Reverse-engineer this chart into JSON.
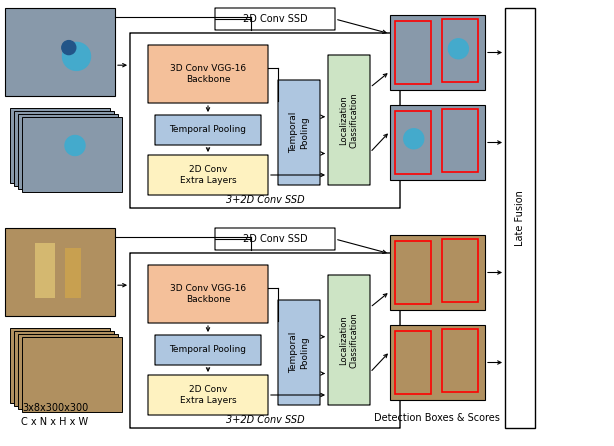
{
  "fig_width": 6.14,
  "fig_height": 4.46,
  "dpi": 100,
  "bg_color": "#ffffff",
  "colors": {
    "vgg_fill": "#f4c09a",
    "tp_fill": "#aec6e0",
    "extra_fill": "#fef2c0",
    "lc_fill": "#cde4c5",
    "outer_box_fill": "#ffffff",
    "red_box": "#ff0000",
    "img_top_bg": "#8899aa",
    "img_bot_bg": "#b09060"
  },
  "stream1": {
    "vgg_label": "3D Conv VGG-16\nBackbone",
    "tp_label": "Temporal Pooling",
    "extra_label": "2D Conv\nExtra Layers",
    "tp2_label": "Temporal\nPooling",
    "lc_label": "Localization\nClassification",
    "ssd2d_label": "2D Conv SSD",
    "ssd3p2d_label": "3+2D Conv SSD"
  },
  "stream2": {
    "vgg_label": "3D Conv VGG-16\nBackbone",
    "tp_label": "Temporal Pooling",
    "extra_label": "2D Conv\nExtra Layers",
    "tp2_label": "Temporal\nPooling",
    "lc_label": "Localization\nClassification",
    "ssd2d_label": "2D Conv SSD",
    "ssd3p2d_label": "3+2D Conv SSD"
  },
  "bottom_label1": "3x8x300x300",
  "bottom_label2": "C x N x H x W",
  "late_fusion_label": "Late Fusion",
  "det_label": "Detection Boxes & Scores"
}
